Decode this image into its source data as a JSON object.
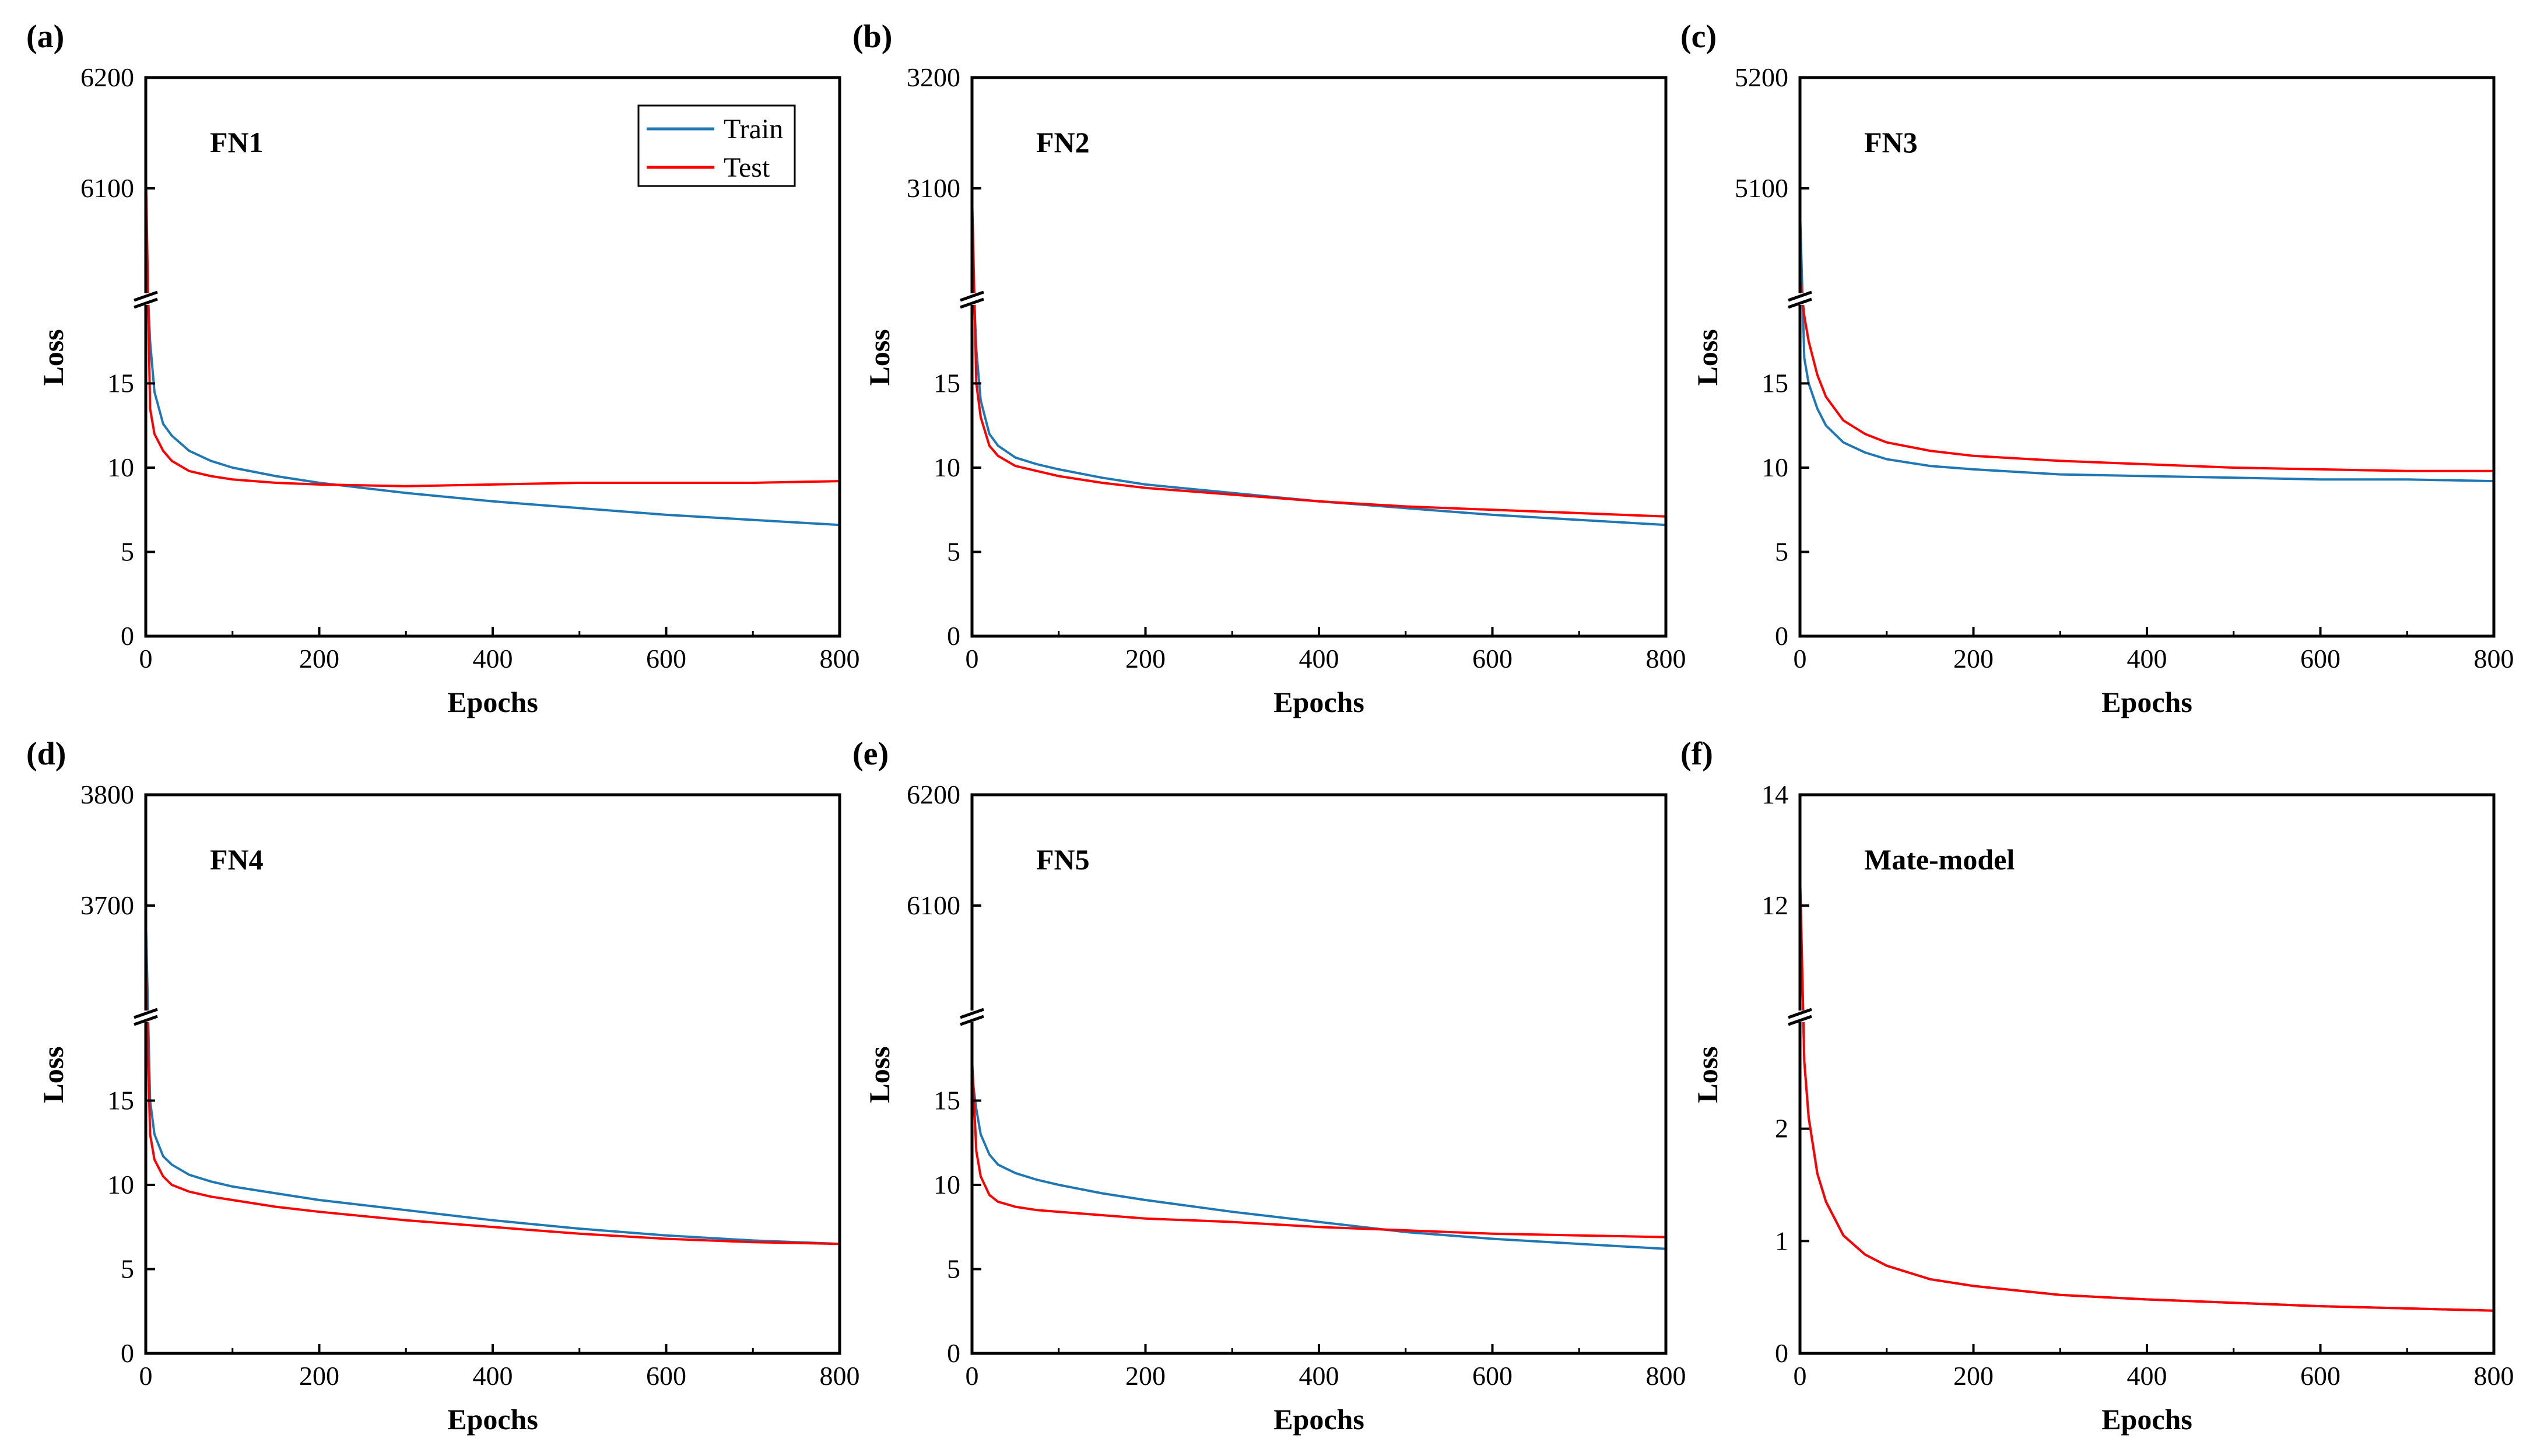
{
  "figure": {
    "colors": {
      "train": "#1f77b4",
      "test": "#ff0000",
      "axis": "#000000"
    }
  },
  "chart_data": [
    {
      "type": "line",
      "panel": "(a)",
      "title": "FN1",
      "xlabel": "Epochs",
      "ylabel": "Loss",
      "xlim": [
        0,
        800
      ],
      "xticks": [
        "0",
        "200",
        "400",
        "600",
        "800"
      ],
      "axis_break": true,
      "lower_ylim": [
        0,
        20
      ],
      "lower_yticks": [
        0,
        5,
        10,
        15
      ],
      "upper_ylim": [
        6000,
        6200
      ],
      "upper_yticks": [
        6100,
        6200
      ],
      "legend": {
        "placement": "top-right",
        "entries": [
          "Train",
          "Test"
        ]
      },
      "series": [
        {
          "name": "Train",
          "x": [
            0,
            5,
            10,
            20,
            30,
            50,
            75,
            100,
            150,
            200,
            300,
            400,
            500,
            600,
            700,
            800
          ],
          "y": [
            6050,
            17.5,
            14.5,
            12.6,
            11.9,
            11.0,
            10.4,
            10.0,
            9.5,
            9.1,
            8.5,
            8.0,
            7.6,
            7.2,
            6.9,
            6.6
          ]
        },
        {
          "name": "Test",
          "x": [
            0,
            5,
            10,
            20,
            30,
            50,
            75,
            100,
            150,
            200,
            300,
            400,
            500,
            600,
            700,
            800
          ],
          "y": [
            6120,
            13.5,
            12.0,
            11.0,
            10.4,
            9.8,
            9.5,
            9.3,
            9.1,
            9.0,
            8.9,
            9.0,
            9.1,
            9.1,
            9.1,
            9.2
          ]
        }
      ]
    },
    {
      "type": "line",
      "panel": "(b)",
      "title": "FN2",
      "xlabel": "Epochs",
      "ylabel": "Loss",
      "xlim": [
        0,
        800
      ],
      "xticks": [
        "0",
        "200",
        "400",
        "600",
        "800"
      ],
      "axis_break": true,
      "lower_ylim": [
        0,
        20
      ],
      "lower_yticks": [
        0,
        5,
        10,
        15
      ],
      "upper_ylim": [
        3000,
        3200
      ],
      "upper_yticks": [
        3100,
        3200
      ],
      "series": [
        {
          "name": "Train",
          "x": [
            0,
            5,
            10,
            20,
            30,
            50,
            75,
            100,
            150,
            200,
            300,
            400,
            500,
            600,
            700,
            800
          ],
          "y": [
            3050,
            17.0,
            14.0,
            12.0,
            11.3,
            10.6,
            10.2,
            9.9,
            9.4,
            9.0,
            8.5,
            8.0,
            7.6,
            7.2,
            6.9,
            6.6
          ]
        },
        {
          "name": "Test",
          "x": [
            0,
            5,
            10,
            20,
            30,
            50,
            75,
            100,
            150,
            200,
            300,
            400,
            500,
            600,
            700,
            800
          ],
          "y": [
            3095,
            15.0,
            13.0,
            11.3,
            10.7,
            10.1,
            9.8,
            9.5,
            9.1,
            8.8,
            8.4,
            8.0,
            7.7,
            7.5,
            7.3,
            7.1
          ]
        }
      ]
    },
    {
      "type": "line",
      "panel": "(c)",
      "title": "FN3",
      "xlabel": "Epochs",
      "ylabel": "Loss",
      "xlim": [
        0,
        800
      ],
      "xticks": [
        "0",
        "200",
        "400",
        "600",
        "800"
      ],
      "axis_break": true,
      "lower_ylim": [
        0,
        20
      ],
      "lower_yticks": [
        0,
        5,
        10,
        15
      ],
      "upper_ylim": [
        5000,
        5200
      ],
      "upper_yticks": [
        5100,
        5200
      ],
      "series": [
        {
          "name": "Train",
          "x": [
            0,
            5,
            10,
            20,
            30,
            50,
            75,
            100,
            150,
            200,
            300,
            400,
            500,
            600,
            700,
            800
          ],
          "y": [
            5080,
            16.5,
            15.0,
            13.5,
            12.5,
            11.5,
            10.9,
            10.5,
            10.1,
            9.9,
            9.6,
            9.5,
            9.4,
            9.3,
            9.3,
            9.2
          ]
        },
        {
          "name": "Test",
          "x": [
            0,
            5,
            10,
            20,
            30,
            50,
            75,
            100,
            150,
            200,
            300,
            400,
            500,
            600,
            700,
            800
          ],
          "y": [
            5020,
            19.0,
            17.5,
            15.5,
            14.2,
            12.8,
            12.0,
            11.5,
            11.0,
            10.7,
            10.4,
            10.2,
            10.0,
            9.9,
            9.8,
            9.8
          ]
        }
      ]
    },
    {
      "type": "line",
      "panel": "(d)",
      "title": "FN4",
      "xlabel": "Epochs",
      "ylabel": "Loss",
      "xlim": [
        0,
        800
      ],
      "xticks": [
        "0",
        "200",
        "400",
        "600",
        "800"
      ],
      "axis_break": true,
      "lower_ylim": [
        0,
        20
      ],
      "lower_yticks": [
        0,
        5,
        10,
        15
      ],
      "upper_ylim": [
        3600,
        3800
      ],
      "upper_yticks": [
        3700,
        3800
      ],
      "series": [
        {
          "name": "Train",
          "x": [
            0,
            5,
            10,
            20,
            30,
            50,
            75,
            100,
            150,
            200,
            300,
            400,
            500,
            600,
            700,
            800
          ],
          "y": [
            3690,
            15.0,
            13.0,
            11.7,
            11.2,
            10.6,
            10.2,
            9.9,
            9.5,
            9.1,
            8.5,
            7.9,
            7.4,
            7.0,
            6.7,
            6.5
          ]
        },
        {
          "name": "Test",
          "x": [
            0,
            5,
            10,
            20,
            30,
            50,
            75,
            100,
            150,
            200,
            300,
            400,
            500,
            600,
            700,
            800
          ],
          "y": [
            3650,
            13.0,
            11.5,
            10.5,
            10.0,
            9.6,
            9.3,
            9.1,
            8.7,
            8.4,
            7.9,
            7.5,
            7.1,
            6.8,
            6.6,
            6.5
          ]
        }
      ]
    },
    {
      "type": "line",
      "panel": "(e)",
      "title": "FN5",
      "xlabel": "Epochs",
      "ylabel": "Loss",
      "xlim": [
        0,
        800
      ],
      "xticks": [
        "0",
        "200",
        "400",
        "600",
        "800"
      ],
      "axis_break": true,
      "lower_ylim": [
        0,
        20
      ],
      "lower_yticks": [
        0,
        5,
        10,
        15
      ],
      "upper_ylim": [
        6000,
        6200
      ],
      "upper_yticks": [
        6100,
        6200
      ],
      "series": [
        {
          "name": "Train",
          "x": [
            0,
            5,
            10,
            20,
            30,
            50,
            75,
            100,
            150,
            200,
            300,
            400,
            500,
            600,
            700,
            800
          ],
          "y": [
            16.5,
            14.5,
            13.0,
            11.8,
            11.2,
            10.7,
            10.3,
            10.0,
            9.5,
            9.1,
            8.4,
            7.8,
            7.2,
            6.8,
            6.5,
            6.2
          ]
        },
        {
          "name": "Test",
          "x": [
            0,
            5,
            10,
            20,
            30,
            50,
            75,
            100,
            150,
            200,
            300,
            400,
            500,
            600,
            700,
            800
          ],
          "y": [
            17.5,
            12.0,
            10.5,
            9.4,
            9.0,
            8.7,
            8.5,
            8.4,
            8.2,
            8.0,
            7.8,
            7.5,
            7.3,
            7.1,
            7.0,
            6.9
          ]
        }
      ]
    },
    {
      "type": "line",
      "panel": "(f)",
      "title": "Mate-model",
      "xlabel": "Epochs",
      "ylabel": "Loss",
      "xlim": [
        0,
        800
      ],
      "xticks": [
        "0",
        "200",
        "400",
        "600",
        "800"
      ],
      "axis_break": true,
      "lower_ylim": [
        0,
        3
      ],
      "lower_yticks": [
        0,
        1,
        2
      ],
      "upper_ylim": [
        10,
        14
      ],
      "upper_yticks": [
        12,
        14
      ],
      "series": [
        {
          "name": "Train",
          "x": [
            0,
            5,
            10,
            20,
            30,
            50,
            75,
            100,
            150,
            200,
            300,
            400,
            500,
            600,
            700,
            800
          ],
          "y": [
            12.5,
            2.6,
            2.1,
            1.6,
            1.35,
            1.05,
            0.88,
            0.78,
            0.66,
            0.6,
            0.52,
            0.48,
            0.45,
            0.42,
            0.4,
            0.38
          ]
        },
        {
          "name": "Test",
          "x": [
            0,
            5,
            10,
            20,
            30,
            50,
            75,
            100,
            150,
            200,
            300,
            400,
            500,
            600,
            700,
            800
          ],
          "y": [
            12.6,
            2.6,
            2.1,
            1.6,
            1.35,
            1.05,
            0.88,
            0.78,
            0.66,
            0.6,
            0.52,
            0.48,
            0.45,
            0.42,
            0.4,
            0.38
          ]
        }
      ]
    }
  ]
}
